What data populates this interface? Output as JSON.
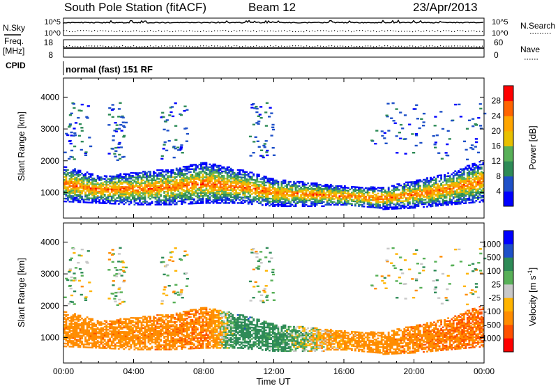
{
  "header": {
    "title": "South Pole Station (fitACF)",
    "beam": "Beam 12",
    "date": "23/Apr/2013"
  },
  "top_panels": {
    "nsky_label": "N.Sky",
    "nsearch_label": "N.Search",
    "nsky_ticks": [
      "10^5",
      "10^0"
    ],
    "nsearch_ticks": [
      "10^5",
      "10^0"
    ],
    "freq_label": "Freq.",
    "freq_unit": "[MHz]",
    "freq_ticks": [
      "18",
      "8"
    ],
    "nave_label": "Nave",
    "nave_ticks": [
      "60",
      "0"
    ],
    "cpid_label": "CPID",
    "cpid_text": "normal (fast) 151 RF"
  },
  "colors": {
    "power_scale": [
      "#0000ff",
      "#1e50c8",
      "#2e8b57",
      "#58b058",
      "#e8c000",
      "#ffa500",
      "#ff6400",
      "#ff0000"
    ],
    "velocity_scale": [
      "#0000ff",
      "#1e50c8",
      "#2e8b57",
      "#58b058",
      "#c8c8c8",
      "#ffb400",
      "#ff8c00",
      "#ff5000",
      "#ff0000"
    ]
  },
  "chart_data": [
    {
      "type": "heatmap",
      "name": "power",
      "xlabel": "",
      "ylabel": "Slant Range [km]",
      "xlim": [
        "00:00",
        "24:00"
      ],
      "ylim": [
        200,
        4600
      ],
      "y_ticks": [
        "1000",
        "2000",
        "3000",
        "4000"
      ],
      "colorbar": {
        "label": "Power [dB]",
        "ticks": [
          "4",
          "8",
          "12",
          "16",
          "20",
          "24",
          "28"
        ],
        "range": [
          0,
          32
        ]
      },
      "main_band": [
        {
          "t": 0,
          "low": 750,
          "high": 1750
        },
        {
          "t": 2,
          "low": 700,
          "high": 1450
        },
        {
          "t": 4,
          "low": 650,
          "high": 1550
        },
        {
          "t": 6,
          "low": 650,
          "high": 1650
        },
        {
          "t": 8,
          "low": 700,
          "high": 1850
        },
        {
          "t": 10,
          "low": 700,
          "high": 1650
        },
        {
          "t": 12,
          "low": 600,
          "high": 1350
        },
        {
          "t": 14,
          "low": 600,
          "high": 1250
        },
        {
          "t": 16,
          "low": 600,
          "high": 1150
        },
        {
          "t": 18,
          "low": 500,
          "high": 1100
        },
        {
          "t": 20,
          "low": 550,
          "high": 1300
        },
        {
          "t": 22,
          "low": 650,
          "high": 1550
        },
        {
          "t": 24,
          "low": 750,
          "high": 1950
        }
      ],
      "high_altitude_echoes_km": [
        2600,
        3500
      ],
      "peak_power_db": 30
    },
    {
      "type": "heatmap",
      "name": "velocity",
      "xlabel": "Time UT",
      "ylabel": "Slant Range [km]",
      "xlim": [
        "00:00",
        "24:00"
      ],
      "ylim": [
        200,
        4600
      ],
      "x_ticks": [
        "00:00",
        "04:00",
        "08:00",
        "12:00",
        "16:00",
        "20:00",
        "00:00"
      ],
      "y_ticks": [
        "1000",
        "2000",
        "3000",
        "4000"
      ],
      "colorbar": {
        "label": "Velocity [m s",
        "label_exponent": "-1",
        "label_end": "]",
        "ticks": [
          "1000",
          "500",
          "100",
          "25",
          "-25",
          "-100",
          "-500",
          "-1000"
        ]
      },
      "dominant_velocity_by_time": [
        {
          "t": 0,
          "velocity": -300
        },
        {
          "t": 4,
          "velocity": -300
        },
        {
          "t": 8,
          "velocity": -400
        },
        {
          "t": 10,
          "velocity": 300
        },
        {
          "t": 12,
          "velocity": 200
        },
        {
          "t": 16,
          "velocity": -200
        },
        {
          "t": 20,
          "velocity": -350
        },
        {
          "t": 24,
          "velocity": -500
        }
      ]
    }
  ]
}
